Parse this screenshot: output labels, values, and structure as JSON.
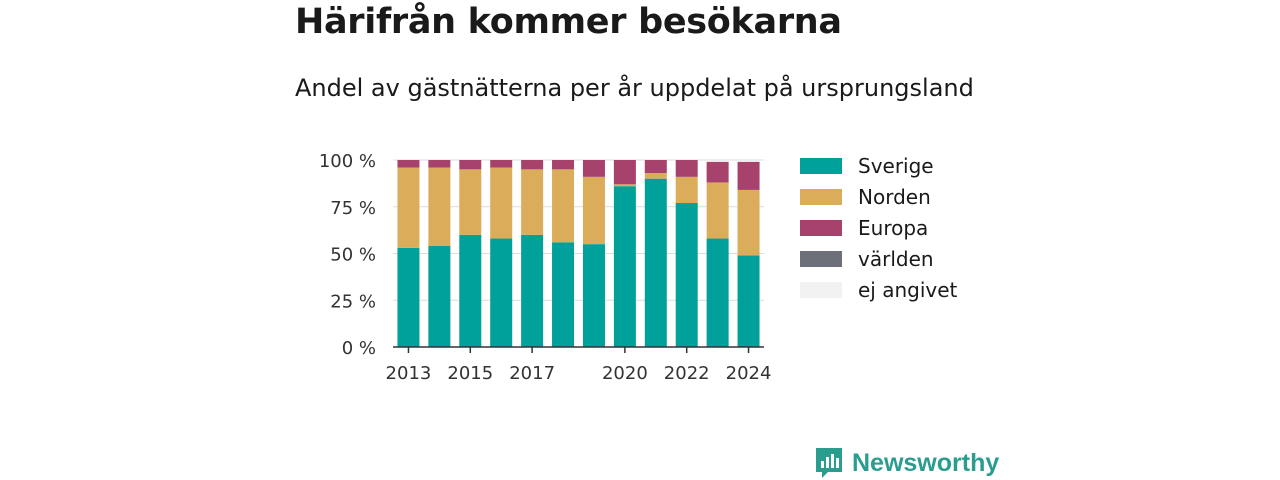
{
  "title": "Härifrån kommer besökarna",
  "subtitle": "Andel av gästnätterna per år uppdelat på ursprungsland",
  "brand": {
    "name": "Newsworthy",
    "icon": "newsworthy-logo-icon",
    "color": "#2a9d8f"
  },
  "chart_data": {
    "type": "bar",
    "stacked": true,
    "categories": [
      "2013",
      "2014",
      "2015",
      "2016",
      "2017",
      "2018",
      "2019",
      "2020",
      "2021",
      "2022",
      "2023",
      "2024"
    ],
    "x_tick_labels": [
      "2013",
      "2015",
      "2017",
      "2020",
      "2022",
      "2024"
    ],
    "y_tick_labels": [
      "0 %",
      "25 %",
      "50 %",
      "75 %",
      "100 %"
    ],
    "ylim": [
      0,
      100
    ],
    "grid": true,
    "legend_position": "right",
    "series": [
      {
        "name": "Sverige",
        "color": "#00a19a",
        "values": [
          53,
          54,
          60,
          58,
          60,
          56,
          55,
          86,
          90,
          77,
          58,
          49
        ]
      },
      {
        "name": "Norden",
        "color": "#dbad5a",
        "values": [
          43,
          42,
          35,
          38,
          35,
          39,
          36,
          1,
          3,
          14,
          30,
          35
        ]
      },
      {
        "name": "Europa",
        "color": "#a6426b",
        "values": [
          4,
          4,
          5,
          4,
          5,
          5,
          9,
          13,
          7,
          9,
          11,
          15
        ]
      },
      {
        "name": "världen",
        "color": "#6e7079",
        "values": [
          0,
          0,
          0,
          0,
          0,
          0,
          0,
          0,
          0,
          0,
          0,
          0
        ]
      },
      {
        "name": "ej angivet",
        "color": "#f2f2f2",
        "values": [
          0,
          0,
          0,
          0,
          0,
          0,
          0,
          0,
          0,
          0,
          0,
          0
        ]
      }
    ]
  }
}
